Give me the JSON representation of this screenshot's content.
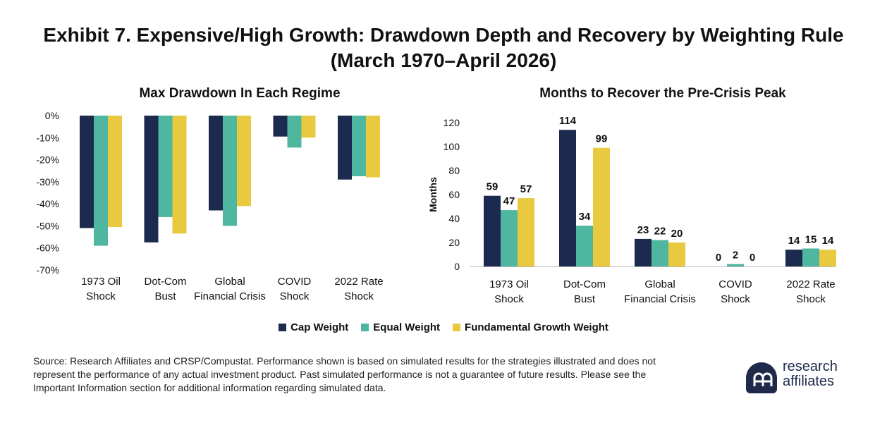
{
  "title_line1": "Exhibit 7. Expensive/High Growth: Drawdown Depth and Recovery by Weighting Rule",
  "title_line2": "(March 1970–April 2026)",
  "colors": {
    "cap": "#1c2a4f",
    "equal": "#4fb6a0",
    "fundamental": "#e8c93f"
  },
  "legend": [
    "Cap Weight",
    "Equal Weight",
    "Fundamental Growth Weight"
  ],
  "source": "Source: Research Affiliates and CRSP/Compustat. Performance shown is based on simulated results for the strategies illustrated and does not represent the performance of any actual investment product. Past simulated performance is not a guarantee of future results. Please see the Important Information section for additional information regarding simulated data.",
  "logo": {
    "line1": "research",
    "line2": "affiliates",
    "icon": "research-affiliates-logo-icon"
  },
  "chart_data": [
    {
      "type": "bar",
      "title": "Max Drawdown In Each Regime",
      "categories": [
        [
          "1973 Oil",
          "Shock"
        ],
        [
          "Dot-Com",
          "Bust"
        ],
        [
          "Global",
          "Financial Crisis"
        ],
        [
          "COVID",
          "Shock"
        ],
        [
          "2022 Rate",
          "Shock"
        ]
      ],
      "ylim": [
        -70,
        0
      ],
      "yticks": [
        "0%",
        "-10%",
        "-20%",
        "-30%",
        "-40%",
        "-50%",
        "-60%",
        "-70%"
      ],
      "ytick_values": [
        0,
        -10,
        -20,
        -30,
        -40,
        -50,
        -60,
        -70
      ],
      "series": [
        {
          "name": "Cap Weight",
          "values": [
            -51,
            -57.5,
            -43,
            -9.5,
            -29
          ]
        },
        {
          "name": "Equal Weight",
          "values": [
            -59,
            -46,
            -50,
            -14.5,
            -27.5
          ]
        },
        {
          "name": "Fundamental Growth Weight",
          "values": [
            -50.5,
            -53.5,
            -41,
            -10,
            -28
          ]
        }
      ]
    },
    {
      "type": "bar",
      "title": "Months to Recover the Pre-Crisis Peak",
      "ylabel": "Months",
      "categories": [
        [
          "1973 Oil",
          "Shock"
        ],
        [
          "Dot-Com",
          "Bust"
        ],
        [
          "Global",
          "Financial Crisis"
        ],
        [
          "COVID",
          "Shock"
        ],
        [
          "2022 Rate",
          "Shock"
        ]
      ],
      "ylim": [
        0,
        120
      ],
      "yticks": [
        "0",
        "20",
        "40",
        "60",
        "80",
        "100",
        "120"
      ],
      "ytick_values": [
        0,
        20,
        40,
        60,
        80,
        100,
        120
      ],
      "series": [
        {
          "name": "Cap Weight",
          "values": [
            59,
            114,
            23,
            0,
            14
          ]
        },
        {
          "name": "Equal Weight",
          "values": [
            47,
            34,
            22,
            2,
            15
          ]
        },
        {
          "name": "Fundamental Growth Weight",
          "values": [
            57,
            99,
            20,
            0,
            14
          ]
        }
      ]
    }
  ]
}
